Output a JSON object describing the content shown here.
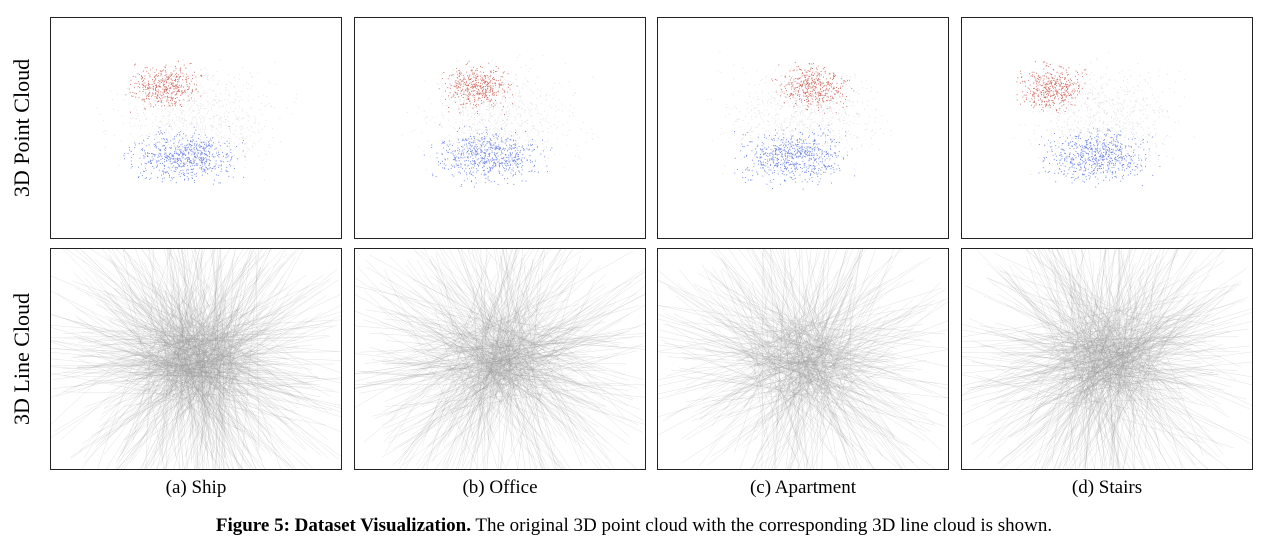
{
  "rows": [
    {
      "label": "3D Point Cloud"
    },
    {
      "label": "3D Line Cloud"
    }
  ],
  "panels": [
    {
      "caption": "(a) Ship"
    },
    {
      "caption": "(b) Office"
    },
    {
      "caption": "(c) Apartment"
    },
    {
      "caption": "(d) Stairs"
    }
  ],
  "figure": {
    "label": "Figure 5: Dataset Visualization.",
    "text": " The original 3D point cloud with the corresponding 3D line cloud is shown."
  },
  "colors": {
    "cool": "#3b5bdb",
    "warm": "#c0392b",
    "neutral": "#d8d8d8",
    "line": "#9a9a9a"
  }
}
